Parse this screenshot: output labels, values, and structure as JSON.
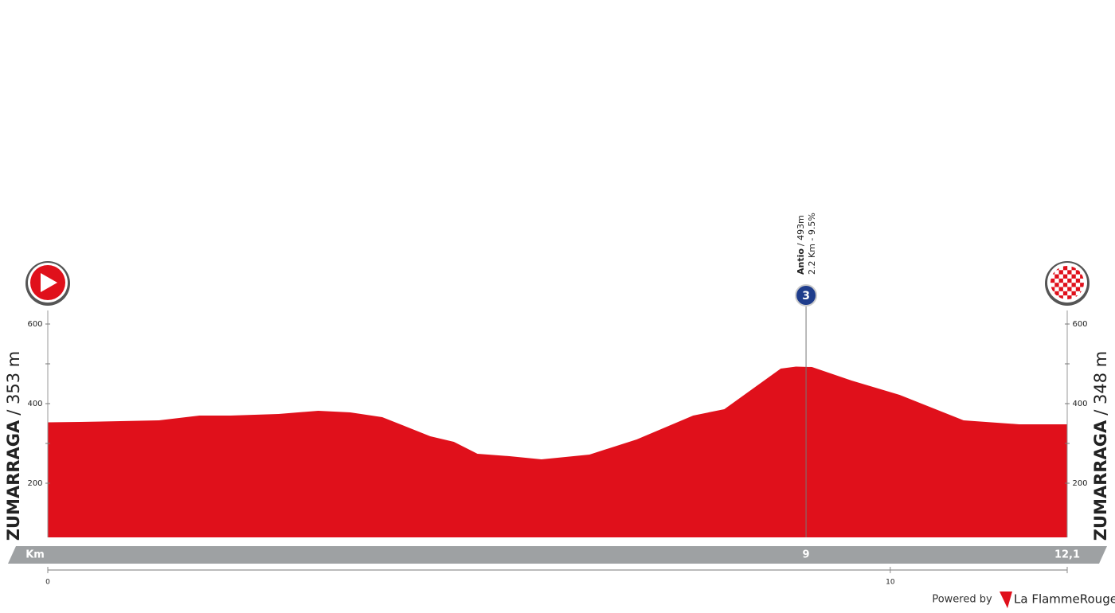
{
  "chart_data": {
    "type": "area",
    "start": {
      "name": "ZUMARRAGA",
      "altitude": "/ 353 m"
    },
    "finish": {
      "name": "ZUMARRAGA",
      "altitude": "/ 348 m"
    },
    "x_label": "Km",
    "x": [
      0,
      0.38,
      1.32,
      1.8,
      2.17,
      2.74,
      3.21,
      3.59,
      3.97,
      4.54,
      4.82,
      5.1,
      5.48,
      5.86,
      6.43,
      6.99,
      7.66,
      8.03,
      8.7,
      8.88,
      9.07,
      9.54,
      10.11,
      10.87,
      11.53,
      12.1
    ],
    "values": [
      353,
      354,
      358,
      370,
      370,
      374,
      382,
      378,
      366,
      318,
      304,
      274,
      268,
      260,
      272,
      310,
      370,
      386,
      488,
      493,
      492,
      458,
      422,
      358,
      348,
      348
    ],
    "color": "#e0101b",
    "xlim": [
      0,
      12.1
    ],
    "xticks": [
      0,
      10
    ],
    "distance": {
      "value": 12.1,
      "label": "12,1"
    },
    "ylim": [
      64,
      634
    ],
    "yticks": [
      200,
      400,
      600
    ],
    "minor_yticks": [
      300,
      500
    ],
    "climbs": [
      {
        "name": "Antio",
        "altitude": "/ 493m",
        "detail": "2.2 Km - 9.5%",
        "category": "3",
        "km": 9
      }
    ],
    "footer": {
      "prefix": "Powered by",
      "brand": "La FlammeRouge"
    }
  }
}
